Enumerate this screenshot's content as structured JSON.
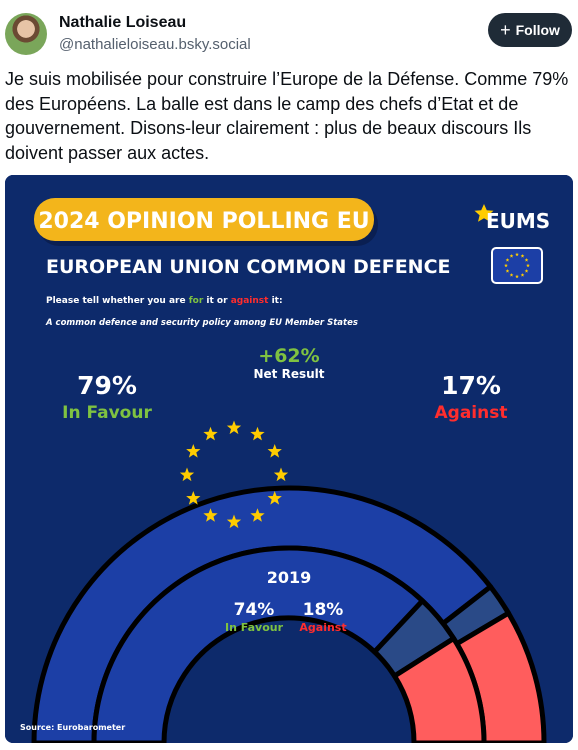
{
  "post": {
    "author_name": "Nathalie Loiseau",
    "author_handle": "@nathalieloiseau.bsky.social",
    "follow_label": "Follow",
    "text": "Je suis mobilisée pour construire l’Europe de la Défense. Comme 79% des Européens. La balle est dans le camp des chefs d’Etat et de gouvernement. Disons-leur clairement : plus de beaux discours Ils doivent passer aux actes."
  },
  "infographic": {
    "badge": "2024 OPINION POLLING EU",
    "logo": "EUMS",
    "title": "EUROPEAN UNION COMMON DEFENCE",
    "question_prefix": "Please tell whether you are ",
    "question_for": "for",
    "question_mid": " it or ",
    "question_against": "against",
    "question_suffix": " it:",
    "subject": "A common defence and security policy among EU Member States",
    "net_value": "+62%",
    "net_label": "Net Result",
    "favour_2024": "79%",
    "favour_label": "In Favour",
    "against_2024": "17%",
    "against_label": "Against",
    "year_2019": "2019",
    "favour_2019": "74%",
    "against_2019": "18%",
    "source": "Source: Eurobarometer",
    "colors": {
      "background": "#0d2a6b",
      "badge": "#f3b51b",
      "favour_bar": "#1c3fa6",
      "other_bar": "#2a4a87",
      "against_bar": "#ff5d5d",
      "favour_text": "#7fc241",
      "against_text": "#ff2d2d",
      "star": "#ffcc00"
    }
  },
  "chart_data": {
    "type": "semi-donut",
    "series": [
      {
        "name": "2024",
        "values": {
          "In Favour": 79,
          "Against": 17
        }
      },
      {
        "name": "2019",
        "values": {
          "In Favour": 74,
          "Against": 18
        }
      }
    ],
    "net_result": 62
  }
}
